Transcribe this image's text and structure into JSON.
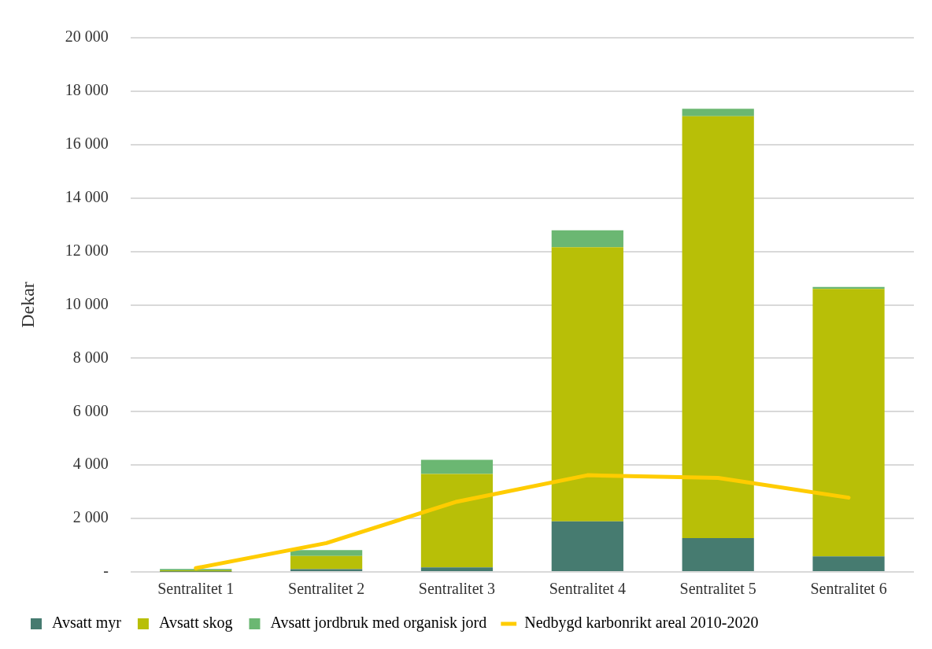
{
  "chart_data": {
    "type": "bar",
    "stacked": true,
    "ylabel": "Dekar",
    "categories": [
      "Sentralitet 1",
      "Sentralitet 2",
      "Sentralitet 3",
      "Sentralitet 4",
      "Sentralitet 5",
      "Sentralitet 6"
    ],
    "series": [
      {
        "name": "Avsatt myr",
        "color": "#467b70",
        "values": [
          10,
          100,
          170,
          1890,
          1270,
          580
        ]
      },
      {
        "name": "Avsatt skog",
        "color": "#b8bf07",
        "values": [
          50,
          500,
          3500,
          10270,
          15790,
          10020
        ]
      },
      {
        "name": "Avsatt jordbruk med organisk jord",
        "color": "#6bb772",
        "values": [
          50,
          220,
          530,
          630,
          280,
          70
        ]
      },
      {
        "name": "Nedbygd karbonrikt areal 2010-2020",
        "type": "line",
        "color": "#ffcc00",
        "marker": "none",
        "values": [
          140,
          1080,
          2630,
          3620,
          3520,
          2780
        ]
      }
    ],
    "ylim": [
      0,
      20000
    ],
    "yticks": [
      {
        "value": 0,
        "label": "-"
      },
      {
        "value": 2000,
        "label": "2 000"
      },
      {
        "value": 4000,
        "label": "4 000"
      },
      {
        "value": 6000,
        "label": "6 000"
      },
      {
        "value": 8000,
        "label": "8 000"
      },
      {
        "value": 10000,
        "label": "10 000"
      },
      {
        "value": 12000,
        "label": "12 000"
      },
      {
        "value": 14000,
        "label": "14 000"
      },
      {
        "value": 16000,
        "label": "16 000"
      },
      {
        "value": 18000,
        "label": "18 000"
      },
      {
        "value": 20000,
        "label": "20 000"
      }
    ],
    "grid": "y",
    "legend": "bottom"
  }
}
